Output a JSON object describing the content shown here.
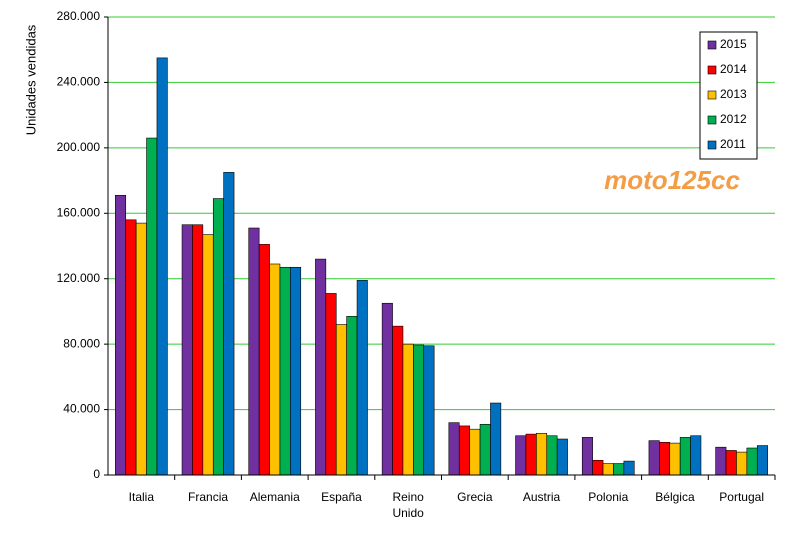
{
  "chart_data": {
    "type": "bar",
    "y_label": "Unidades vendidas",
    "watermark": "moto125cc",
    "categories": [
      "Italia",
      "Francia",
      "Alemania",
      "España",
      "Reino Unido",
      "Grecia",
      "Austria",
      "Polonia",
      "Bélgica",
      "Portugal"
    ],
    "series": [
      {
        "name": "2015",
        "color": "#7030a0",
        "values": [
          171000,
          153000,
          151000,
          132000,
          105000,
          32000,
          24000,
          23000,
          21000,
          17000
        ]
      },
      {
        "name": "2014",
        "color": "#ff0000",
        "values": [
          156000,
          153000,
          141000,
          111000,
          91000,
          30000,
          25000,
          9000,
          20000,
          15000
        ]
      },
      {
        "name": "2013",
        "color": "#ffc000",
        "values": [
          154000,
          147000,
          129000,
          92000,
          80000,
          28000,
          25500,
          7000,
          19500,
          14000
        ]
      },
      {
        "name": "2012",
        "color": "#00b050",
        "values": [
          206000,
          169000,
          127000,
          97000,
          79500,
          31000,
          24000,
          7000,
          23000,
          16500
        ]
      },
      {
        "name": "2011",
        "color": "#0070c0",
        "values": [
          255000,
          185000,
          127000,
          119000,
          79000,
          44000,
          22000,
          8500,
          24000,
          18000
        ]
      }
    ],
    "ylim": [
      0,
      280000
    ],
    "yticks": [
      0,
      {
        "value": 40000,
        "label": "40.000"
      },
      {
        "value": 80000,
        "label": "80.000"
      },
      {
        "value": 120000,
        "label": "120.000"
      },
      {
        "value": 160000,
        "label": "160.000"
      },
      {
        "value": 200000,
        "label": "200.000"
      },
      {
        "value": 240000,
        "label": "240.000"
      },
      {
        "value": 280000,
        "label": "280.000"
      }
    ],
    "grid": true,
    "grid_color": "#33cc33",
    "legend": "top-right"
  }
}
